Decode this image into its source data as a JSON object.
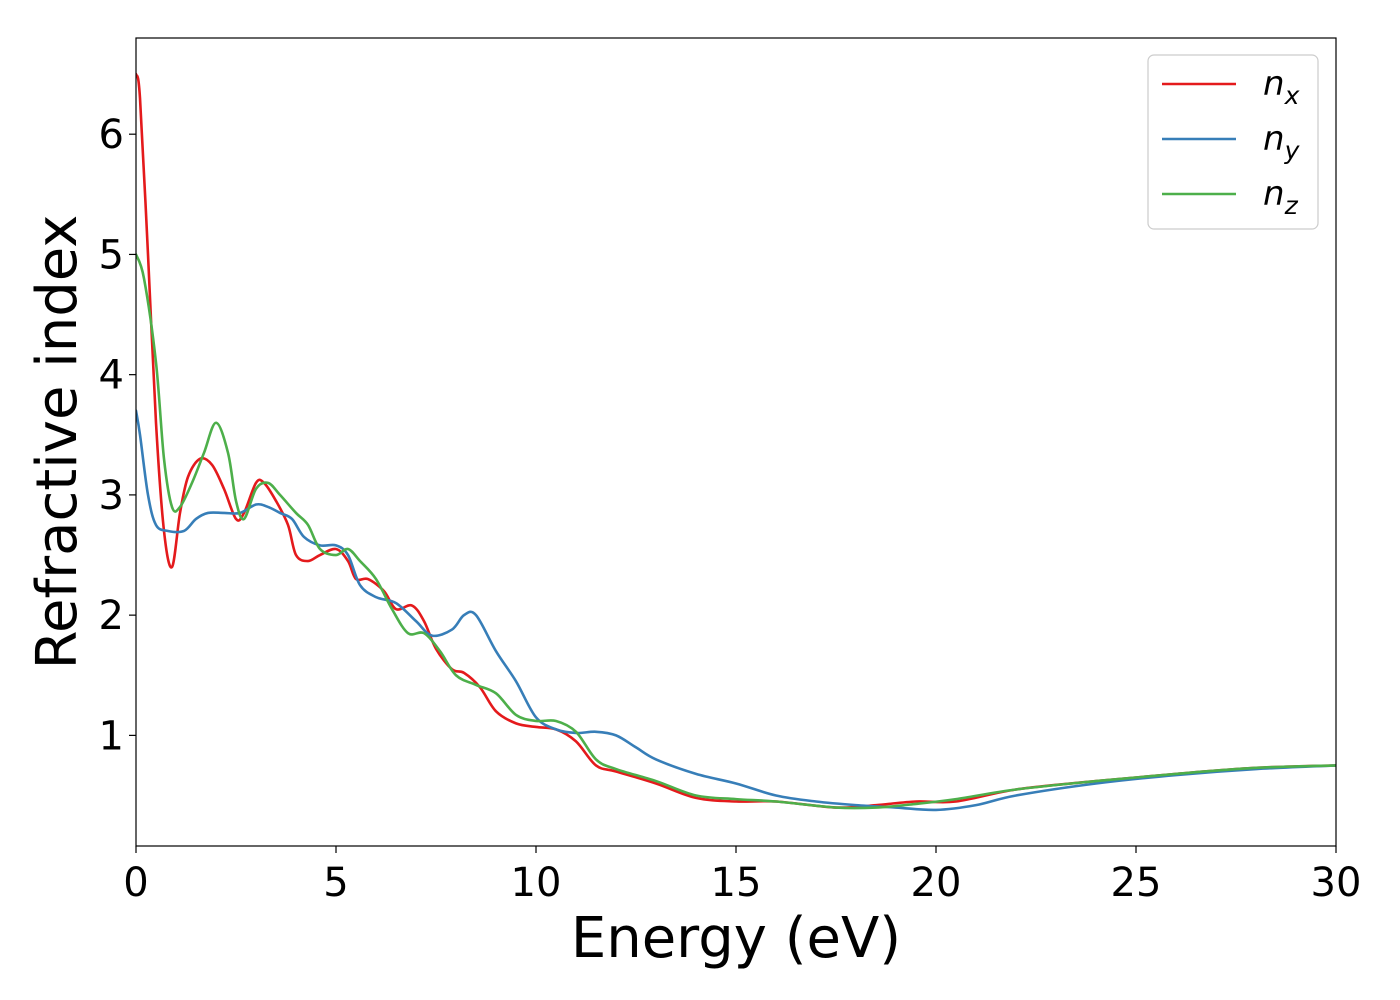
{
  "chart_data": {
    "type": "line",
    "title": "",
    "xlabel": "Energy (eV)",
    "ylabel": "Refractive index",
    "xlim": [
      0,
      30
    ],
    "ylim": [
      0.08,
      6.8
    ],
    "xticks": [
      0,
      5,
      10,
      15,
      20,
      25,
      30
    ],
    "xtick_labels": [
      "0",
      "5",
      "10",
      "15",
      "20",
      "25",
      "30"
    ],
    "yticks": [
      1,
      2,
      3,
      4,
      5,
      6
    ],
    "ytick_labels": [
      "1",
      "2",
      "3",
      "4",
      "5",
      "6"
    ],
    "grid": false,
    "legend_position": "top-right",
    "series": [
      {
        "name": "n_x",
        "label_base": "n",
        "label_sub": "x",
        "color": "#e41a1c",
        "x": [
          0,
          0.1,
          0.3,
          0.5,
          0.7,
          0.9,
          1.1,
          1.3,
          1.6,
          1.9,
          2.2,
          2.5,
          2.7,
          3.0,
          3.2,
          3.5,
          3.8,
          4.0,
          4.3,
          4.6,
          5.0,
          5.3,
          5.5,
          5.8,
          6.2,
          6.5,
          6.9,
          7.2,
          7.5,
          7.9,
          8.2,
          8.6,
          9.0,
          9.5,
          10.0,
          10.5,
          11.0,
          11.5,
          12.0,
          13.0,
          14.0,
          15.0,
          16.0,
          17.5,
          18.5,
          19.5,
          20.5,
          22.0,
          24.0,
          26.0,
          28.0,
          30.0
        ],
        "y": [
          6.5,
          6.3,
          5.0,
          3.6,
          2.7,
          2.4,
          2.85,
          3.15,
          3.3,
          3.25,
          3.05,
          2.8,
          2.85,
          3.1,
          3.1,
          2.95,
          2.75,
          2.5,
          2.45,
          2.5,
          2.55,
          2.45,
          2.3,
          2.3,
          2.2,
          2.05,
          2.08,
          1.95,
          1.72,
          1.55,
          1.52,
          1.4,
          1.2,
          1.1,
          1.07,
          1.05,
          0.95,
          0.75,
          0.7,
          0.6,
          0.48,
          0.45,
          0.45,
          0.4,
          0.42,
          0.45,
          0.45,
          0.55,
          0.62,
          0.68,
          0.73,
          0.75
        ]
      },
      {
        "name": "n_y",
        "label_base": "n",
        "label_sub": "y",
        "color": "#377eb8",
        "x": [
          0,
          0.1,
          0.3,
          0.5,
          0.8,
          1.2,
          1.5,
          1.8,
          2.2,
          2.6,
          3.0,
          3.3,
          3.6,
          3.9,
          4.2,
          4.6,
          5.0,
          5.3,
          5.6,
          6.0,
          6.5,
          7.0,
          7.4,
          7.9,
          8.2,
          8.5,
          9.0,
          9.5,
          10.0,
          10.5,
          11.0,
          11.5,
          12.0,
          12.5,
          13.0,
          14.0,
          15.0,
          16.0,
          17.0,
          18.0,
          19.0,
          20.0,
          21.0,
          22.0,
          24.0,
          26.0,
          28.0,
          30.0
        ],
        "y": [
          3.7,
          3.5,
          3.0,
          2.75,
          2.7,
          2.7,
          2.8,
          2.85,
          2.85,
          2.85,
          2.92,
          2.9,
          2.85,
          2.8,
          2.65,
          2.58,
          2.58,
          2.5,
          2.25,
          2.15,
          2.1,
          1.95,
          1.83,
          1.88,
          2.0,
          2.0,
          1.7,
          1.45,
          1.15,
          1.05,
          1.02,
          1.03,
          1.0,
          0.9,
          0.8,
          0.68,
          0.6,
          0.5,
          0.45,
          0.42,
          0.4,
          0.38,
          0.42,
          0.5,
          0.6,
          0.67,
          0.72,
          0.75
        ]
      },
      {
        "name": "n_z",
        "label_base": "n",
        "label_sub": "z",
        "color": "#4daf4a",
        "x": [
          0,
          0.2,
          0.5,
          0.7,
          0.9,
          1.1,
          1.4,
          1.7,
          2.0,
          2.3,
          2.5,
          2.7,
          3.0,
          3.3,
          3.6,
          4.0,
          4.3,
          4.6,
          5.0,
          5.3,
          5.6,
          6.0,
          6.4,
          6.8,
          7.2,
          7.6,
          8.0,
          8.5,
          9.0,
          9.5,
          10.0,
          10.5,
          11.0,
          11.5,
          12.0,
          13.0,
          14.0,
          15.0,
          16.0,
          17.5,
          18.5,
          19.5,
          20.5,
          22.0,
          24.0,
          26.0,
          28.0,
          30.0
        ],
        "y": [
          5.0,
          4.8,
          4.1,
          3.3,
          2.9,
          2.9,
          3.1,
          3.35,
          3.6,
          3.35,
          2.95,
          2.8,
          3.05,
          3.1,
          3.0,
          2.85,
          2.75,
          2.55,
          2.5,
          2.55,
          2.45,
          2.3,
          2.05,
          1.85,
          1.85,
          1.7,
          1.5,
          1.42,
          1.35,
          1.17,
          1.12,
          1.12,
          1.03,
          0.8,
          0.72,
          0.62,
          0.5,
          0.47,
          0.45,
          0.4,
          0.4,
          0.43,
          0.47,
          0.55,
          0.62,
          0.68,
          0.73,
          0.75
        ]
      }
    ]
  }
}
